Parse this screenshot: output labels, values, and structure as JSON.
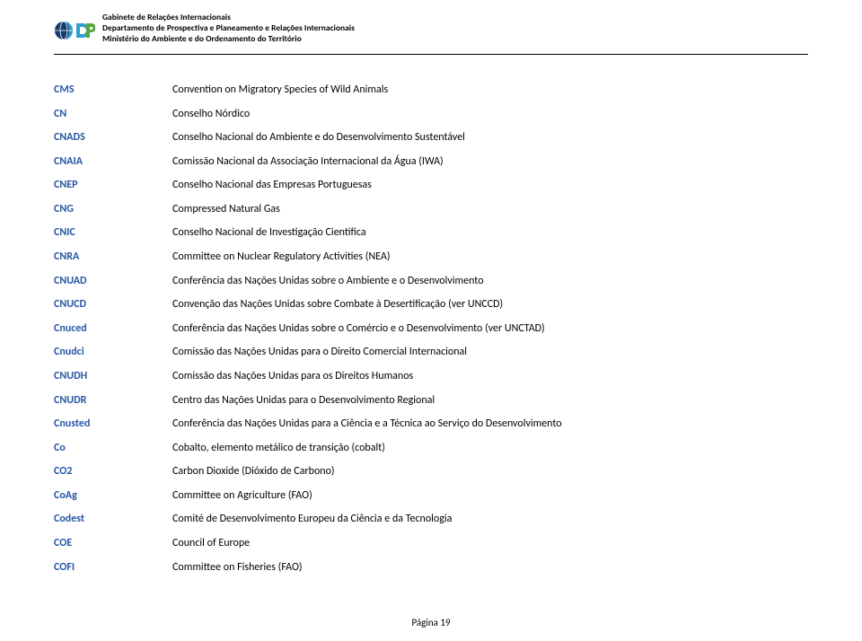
{
  "header": {
    "org_line1": "Gabinete de Relações Internacionais",
    "org_line2": "Departamento de Prospectiva e Planeamento e Relações Internacionais",
    "org_line3": "Ministério do Ambiente e do Ordenamento do Território"
  },
  "logo": {
    "colors": {
      "global_blue": "#2f9fce",
      "dp_dark_blue": "#153b6e",
      "dp_light_blue": "#2f9fce",
      "dp_green": "#56a641"
    }
  },
  "acronym_color": "#2857a5",
  "entries": [
    {
      "acr": "CMS",
      "def": "Convention on Migratory Species of Wild Animals"
    },
    {
      "acr": "CN",
      "def": "Conselho Nórdico"
    },
    {
      "acr": "CNADS",
      "def": "Conselho Nacional do Ambiente e do Desenvolvimento Sustentável"
    },
    {
      "acr": "CNAIA",
      "def": "Comissão Nacional da Associação Internacional da Água (IWA)"
    },
    {
      "acr": "CNEP",
      "def": "Conselho Nacional das Empresas Portuguesas"
    },
    {
      "acr": "CNG",
      "def": "Compressed Natural Gas"
    },
    {
      "acr": "CNIC",
      "def": "Conselho Nacional de Investigação Científica"
    },
    {
      "acr": "CNRA",
      "def": "Committee on Nuclear Regulatory Activities (NEA)"
    },
    {
      "acr": "CNUAD",
      "def": "Conferência das Nações Unidas sobre o Ambiente e o Desenvolvimento"
    },
    {
      "acr": "CNUCD",
      "def": "Convenção das Nações Unidas sobre Combate à Desertificação (ver UNCCD)"
    },
    {
      "acr": "Cnuced",
      "def": "Conferência das Nações Unidas sobre o Comércio e o Desenvolvimento (ver UNCTAD)"
    },
    {
      "acr": "Cnudci",
      "def": "Comissão das Nações Unidas para o Direito Comercial Internacional"
    },
    {
      "acr": "CNUDH",
      "def": "Comissão das Nações Unidas para os Direitos Humanos"
    },
    {
      "acr": "CNUDR",
      "def": "Centro das Nações Unidas para o Desenvolvimento Regional"
    },
    {
      "acr": "Cnusted",
      "def": "Conferência das Nações Unidas para a Ciência e a Técnica ao Serviço do Desenvolvimento"
    },
    {
      "acr": "Co",
      "def": "Cobalto, elemento metálico de transição (cobalt)"
    },
    {
      "acr": "CO2",
      "def": "Carbon Dioxide (Dióxido de Carbono)"
    },
    {
      "acr": "CoAg",
      "def": "Committee on Agriculture (FAO)"
    },
    {
      "acr": "Codest",
      "def": "Comité de Desenvolvimento Europeu da Ciência e da Tecnologia"
    },
    {
      "acr": "COE",
      "def": "Council of Europe"
    },
    {
      "acr": "COFI",
      "def": "Committee on Fisheries (FAO)"
    }
  ],
  "footer": "Página 19"
}
